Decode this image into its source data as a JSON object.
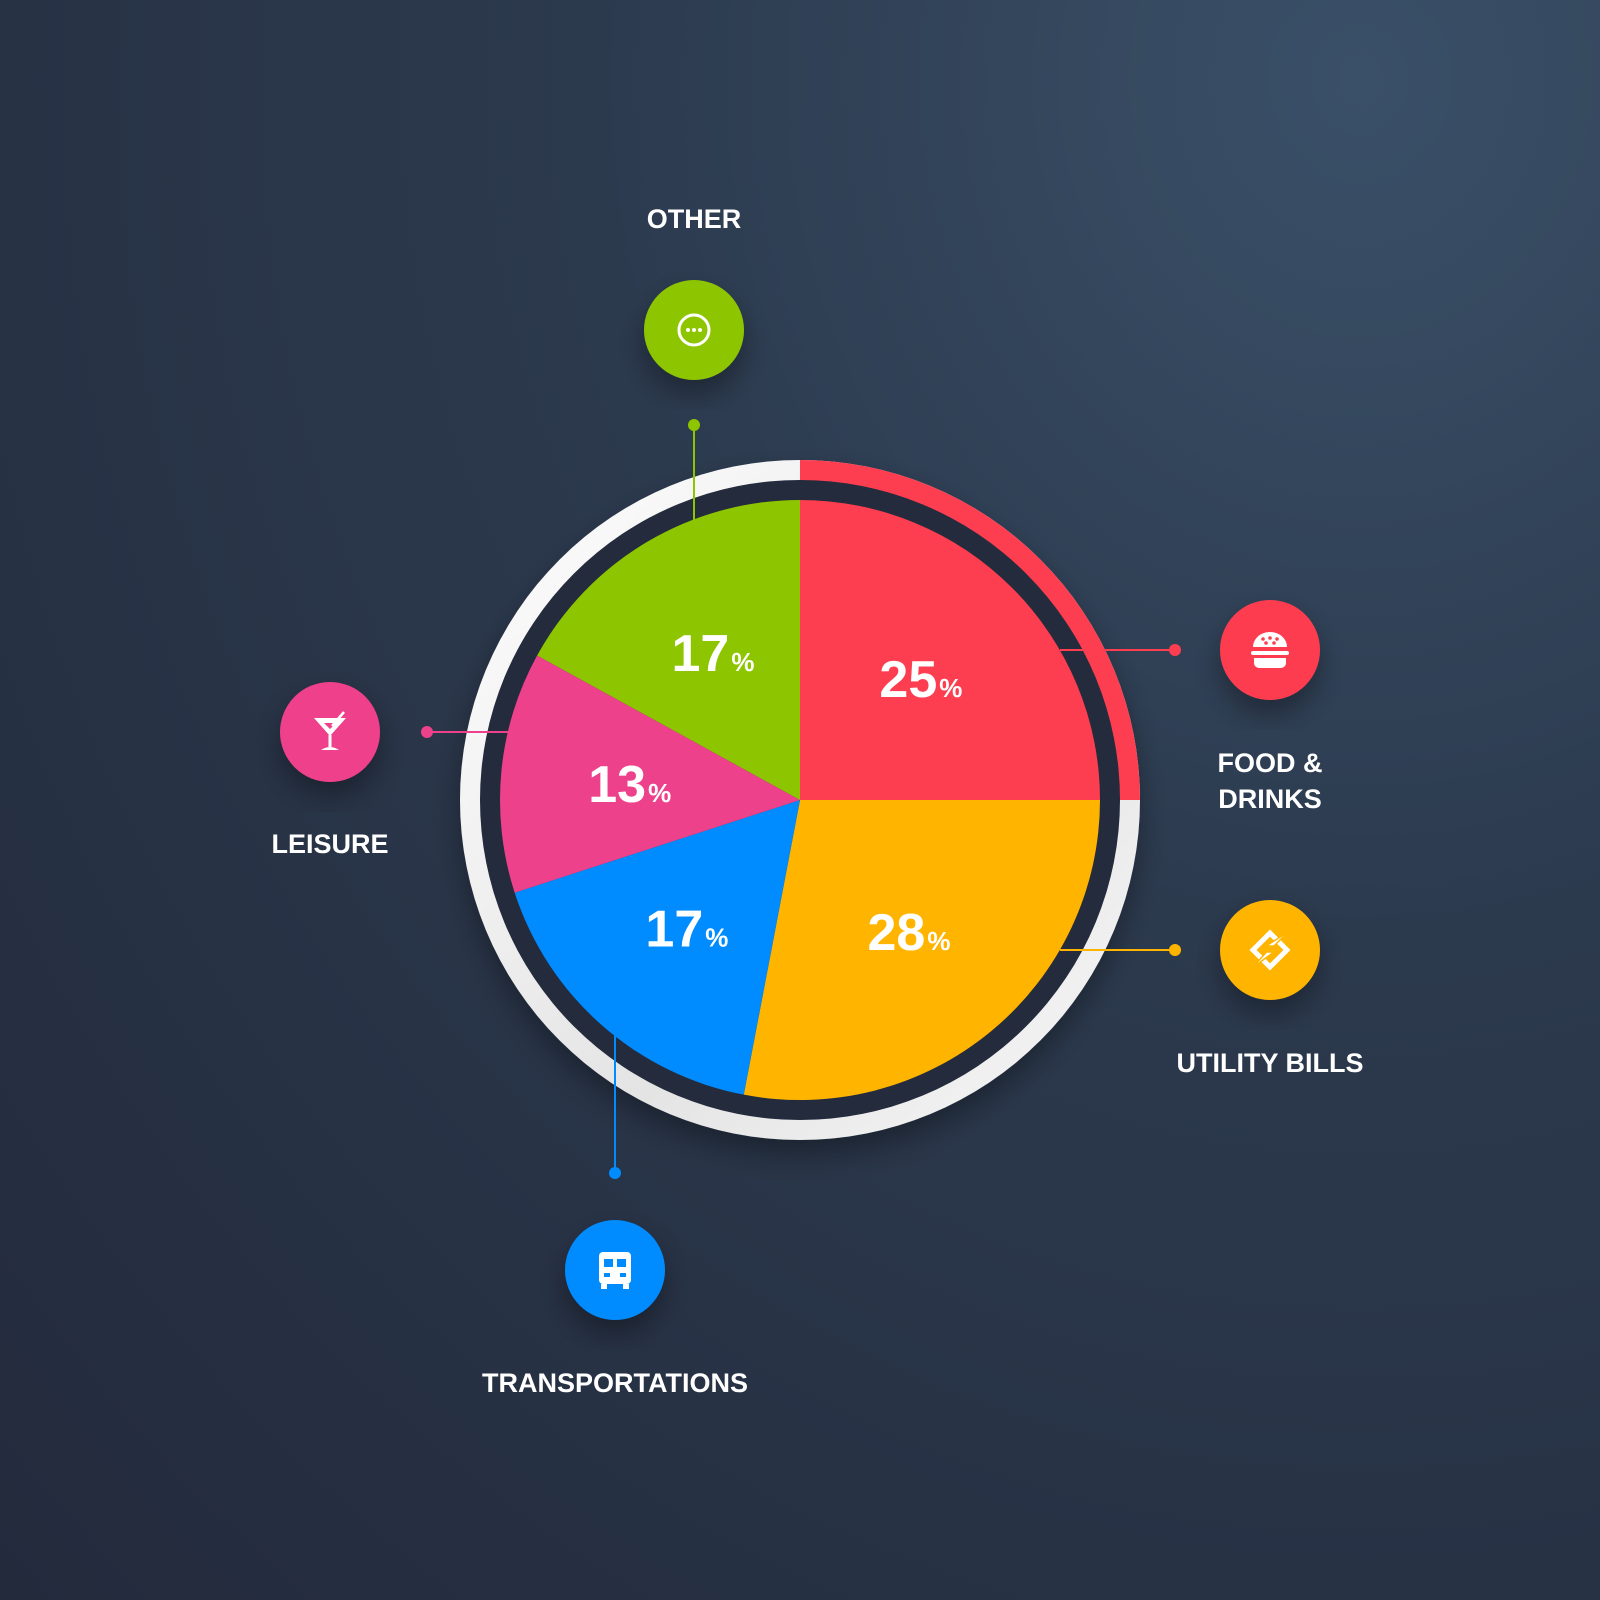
{
  "chart_data": {
    "type": "pie",
    "title": "",
    "start": "top",
    "direction": "clockwise",
    "slices": [
      {
        "label": "FOOD & DRINKS",
        "label_lines": [
          "FOOD &",
          "DRINKS"
        ],
        "value": 25,
        "display": "25",
        "color": "#fd3e50",
        "icon": "burger-icon"
      },
      {
        "label": "UTILITY BILLS",
        "label_lines": [
          "UTILITY BILLS"
        ],
        "value": 28,
        "display": "28",
        "color": "#ffb400",
        "icon": "electricity-icon"
      },
      {
        "label": "TRANSPORTATIONS",
        "label_lines": [
          "TRANSPORTATIONS"
        ],
        "value": 17,
        "display": "17",
        "color": "#008cff",
        "icon": "bus-icon"
      },
      {
        "label": "LEISURE",
        "label_lines": [
          "LEISURE"
        ],
        "value": 13,
        "display": "13",
        "color": "#ee418b",
        "icon": "cocktail-icon"
      },
      {
        "label": "OTHER",
        "label_lines": [
          "OTHER"
        ],
        "value": 17,
        "display": "17",
        "color": "#8dc500",
        "icon": "more-icon"
      }
    ],
    "percent_sign": "%",
    "outer_ring_highlight": "FOOD & DRINKS",
    "ring_color": "#ffffff"
  }
}
